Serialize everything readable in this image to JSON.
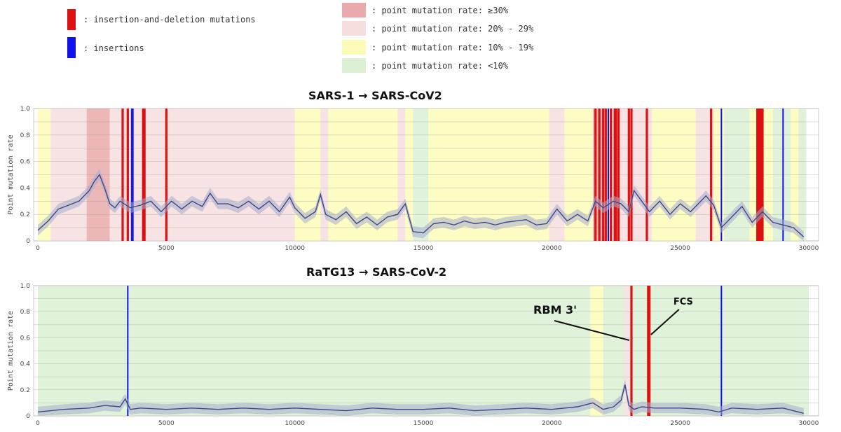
{
  "legend": {
    "items": [
      {
        "label": ": insertion-and-deletion mutations",
        "color": "#dd1111"
      },
      {
        "label": ": insertions",
        "color": "#1111ee"
      },
      {
        "label": ": point mutation rate: ≥30%",
        "color": "#e8aaaa"
      },
      {
        "label": ": point mutation rate: 20% - 29%",
        "color": "#f6dede"
      },
      {
        "label": ": point mutation rate: 10% - 19%",
        "color": "#fcfcb8"
      },
      {
        "label": ": point mutation rate: <10%",
        "color": "#dcf0d4"
      }
    ]
  },
  "chart_data": [
    {
      "type": "line",
      "title": "SARS-1  →  SARS-CoV2",
      "ylabel": "Point mutation rate",
      "xlim": [
        0,
        30000
      ],
      "ylim": [
        0,
        1.0
      ],
      "xticks": [
        "0",
        "5000",
        "10000",
        "15000",
        "20000",
        "25000",
        "30000"
      ],
      "yticks": [
        "0",
        "0.2",
        "0.4",
        "0.6",
        "0.8",
        "1.0"
      ],
      "colors": {
        "line": "#40468a",
        "band": "#a5adca"
      },
      "regions": [
        {
          "start": 0,
          "end": 500,
          "rate_class": "10-19"
        },
        {
          "start": 500,
          "end": 1900,
          "rate_class": "20-29"
        },
        {
          "start": 1900,
          "end": 2800,
          "rate_class": ">=30"
        },
        {
          "start": 2800,
          "end": 10000,
          "rate_class": "20-29"
        },
        {
          "start": 10000,
          "end": 11000,
          "rate_class": "10-19"
        },
        {
          "start": 11000,
          "end": 11300,
          "rate_class": "20-29"
        },
        {
          "start": 11300,
          "end": 14000,
          "rate_class": "10-19"
        },
        {
          "start": 14000,
          "end": 14300,
          "rate_class": "20-29"
        },
        {
          "start": 14300,
          "end": 14600,
          "rate_class": "10-19"
        },
        {
          "start": 14600,
          "end": 15200,
          "rate_class": "<10"
        },
        {
          "start": 15200,
          "end": 19900,
          "rate_class": "10-19"
        },
        {
          "start": 19900,
          "end": 20500,
          "rate_class": "20-29"
        },
        {
          "start": 20500,
          "end": 21600,
          "rate_class": "10-19"
        },
        {
          "start": 21600,
          "end": 22000,
          "rate_class": ">=30"
        },
        {
          "start": 22000,
          "end": 23900,
          "rate_class": "20-29"
        },
        {
          "start": 23900,
          "end": 25600,
          "rate_class": "10-19"
        },
        {
          "start": 25600,
          "end": 26300,
          "rate_class": "20-29"
        },
        {
          "start": 26300,
          "end": 26700,
          "rate_class": "10-19"
        },
        {
          "start": 26700,
          "end": 27700,
          "rate_class": "<10"
        },
        {
          "start": 27700,
          "end": 28600,
          "rate_class": "10-19"
        },
        {
          "start": 28600,
          "end": 29300,
          "rate_class": "<10"
        },
        {
          "start": 29300,
          "end": 29600,
          "rate_class": "10-19"
        },
        {
          "start": 29600,
          "end": 29900,
          "rate_class": "<10"
        }
      ],
      "indels": [
        3300,
        3500,
        4100,
        4150,
        5000,
        21700,
        21850,
        22000,
        22100,
        22300,
        22450,
        22500,
        22600,
        23000,
        23100,
        23700,
        26200,
        28000,
        28050,
        28100,
        28150,
        28200
      ],
      "insertions": [
        3650,
        3700,
        22200,
        26600,
        29000
      ],
      "series": {
        "x": [
          0,
          400,
          800,
          1200,
          1600,
          2000,
          2200,
          2400,
          2600,
          2800,
          3000,
          3200,
          3600,
          4000,
          4400,
          4800,
          5200,
          5600,
          6000,
          6400,
          6700,
          7000,
          7400,
          7800,
          8200,
          8600,
          9000,
          9400,
          9800,
          10000,
          10400,
          10800,
          11000,
          11200,
          11600,
          12000,
          12400,
          12800,
          13200,
          13600,
          14000,
          14300,
          14600,
          15000,
          15400,
          15800,
          16200,
          16600,
          17000,
          17400,
          17800,
          18200,
          18600,
          19000,
          19400,
          19800,
          20200,
          20600,
          21000,
          21400,
          21700,
          22000,
          22400,
          22700,
          23000,
          23200,
          23500,
          23800,
          24200,
          24600,
          25000,
          25400,
          25800,
          26000,
          26300,
          26600,
          27000,
          27400,
          27800,
          28200,
          28600,
          29000,
          29400,
          29800
        ],
        "y": [
          0.08,
          0.15,
          0.24,
          0.27,
          0.3,
          0.38,
          0.45,
          0.5,
          0.4,
          0.28,
          0.25,
          0.3,
          0.25,
          0.27,
          0.3,
          0.22,
          0.3,
          0.24,
          0.3,
          0.26,
          0.36,
          0.28,
          0.28,
          0.25,
          0.3,
          0.24,
          0.3,
          0.22,
          0.33,
          0.25,
          0.17,
          0.22,
          0.35,
          0.2,
          0.16,
          0.22,
          0.13,
          0.18,
          0.12,
          0.18,
          0.2,
          0.28,
          0.07,
          0.06,
          0.13,
          0.14,
          0.12,
          0.15,
          0.13,
          0.14,
          0.12,
          0.14,
          0.15,
          0.16,
          0.12,
          0.13,
          0.24,
          0.15,
          0.2,
          0.15,
          0.3,
          0.25,
          0.3,
          0.28,
          0.22,
          0.38,
          0.3,
          0.22,
          0.3,
          0.2,
          0.28,
          0.22,
          0.3,
          0.34,
          0.27,
          0.1,
          0.18,
          0.26,
          0.14,
          0.22,
          0.14,
          0.12,
          0.1,
          0.03
        ]
      }
    },
    {
      "type": "line",
      "title": "RaTG13 → SARS-CoV-2",
      "ylabel": "Point mutation rate",
      "xlim": [
        0,
        30000
      ],
      "ylim": [
        0,
        1.0
      ],
      "xticks": [
        "0",
        "5000",
        "10000",
        "15000",
        "20000",
        "25000",
        "30000"
      ],
      "yticks": [
        "0",
        "0.2",
        "0.4",
        "0.6",
        "0.8",
        "1.0"
      ],
      "colors": {
        "line": "#40468a",
        "band": "#a5adca"
      },
      "regions": [
        {
          "start": 0,
          "end": 21500,
          "rate_class": "<10"
        },
        {
          "start": 21500,
          "end": 22000,
          "rate_class": "10-19"
        },
        {
          "start": 22000,
          "end": 22800,
          "rate_class": "<10"
        },
        {
          "start": 22800,
          "end": 23100,
          "rate_class": "20-29"
        },
        {
          "start": 23100,
          "end": 30000,
          "rate_class": "<10"
        }
      ],
      "indels": [
        23100,
        23750,
        23800
      ],
      "insertions": [
        3500,
        26600
      ],
      "annotations": [
        {
          "label": "RBM 3'",
          "x": 23100
        },
        {
          "label": "FCS",
          "x": 23750
        }
      ],
      "series": {
        "x": [
          0,
          1000,
          2000,
          2600,
          3200,
          3400,
          3600,
          4000,
          5000,
          6000,
          7000,
          8000,
          9000,
          10000,
          11000,
          12000,
          13000,
          14000,
          15000,
          16000,
          17000,
          18000,
          19000,
          20000,
          21000,
          21600,
          22000,
          22400,
          22700,
          22850,
          23000,
          23200,
          23500,
          24000,
          25000,
          26000,
          26500,
          27000,
          28000,
          29000,
          29800
        ],
        "y": [
          0.03,
          0.05,
          0.06,
          0.08,
          0.07,
          0.13,
          0.05,
          0.06,
          0.05,
          0.06,
          0.05,
          0.06,
          0.05,
          0.06,
          0.05,
          0.04,
          0.06,
          0.05,
          0.05,
          0.06,
          0.04,
          0.05,
          0.06,
          0.05,
          0.07,
          0.1,
          0.05,
          0.07,
          0.12,
          0.24,
          0.08,
          0.05,
          0.07,
          0.06,
          0.06,
          0.05,
          0.03,
          0.06,
          0.05,
          0.06,
          0.02
        ]
      }
    }
  ]
}
